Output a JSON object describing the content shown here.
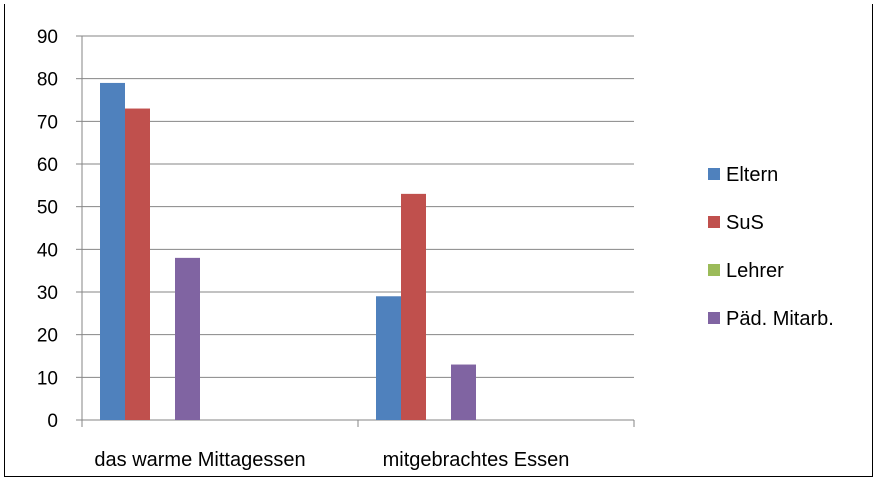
{
  "chart_data": {
    "type": "bar",
    "title": "",
    "xlabel": "",
    "ylabel": "",
    "categories": [
      "das warme Mittagessen",
      "mitgebrachtes Essen"
    ],
    "series": [
      {
        "name": "Eltern",
        "values": [
          79,
          29
        ],
        "color": "#4f81bd"
      },
      {
        "name": "SuS",
        "values": [
          73,
          53
        ],
        "color": "#c0504d"
      },
      {
        "name": "Lehrer",
        "values": [
          0,
          0
        ],
        "color": "#9bbb59"
      },
      {
        "name": "Päd. Mitarb.",
        "values": [
          38,
          13
        ],
        "color": "#8064a2"
      }
    ],
    "ylim": [
      0,
      90
    ],
    "yticks": [
      "0",
      "10",
      "20",
      "30",
      "40",
      "50",
      "60",
      "70",
      "80",
      "90"
    ],
    "grid": true,
    "legend": "right"
  }
}
